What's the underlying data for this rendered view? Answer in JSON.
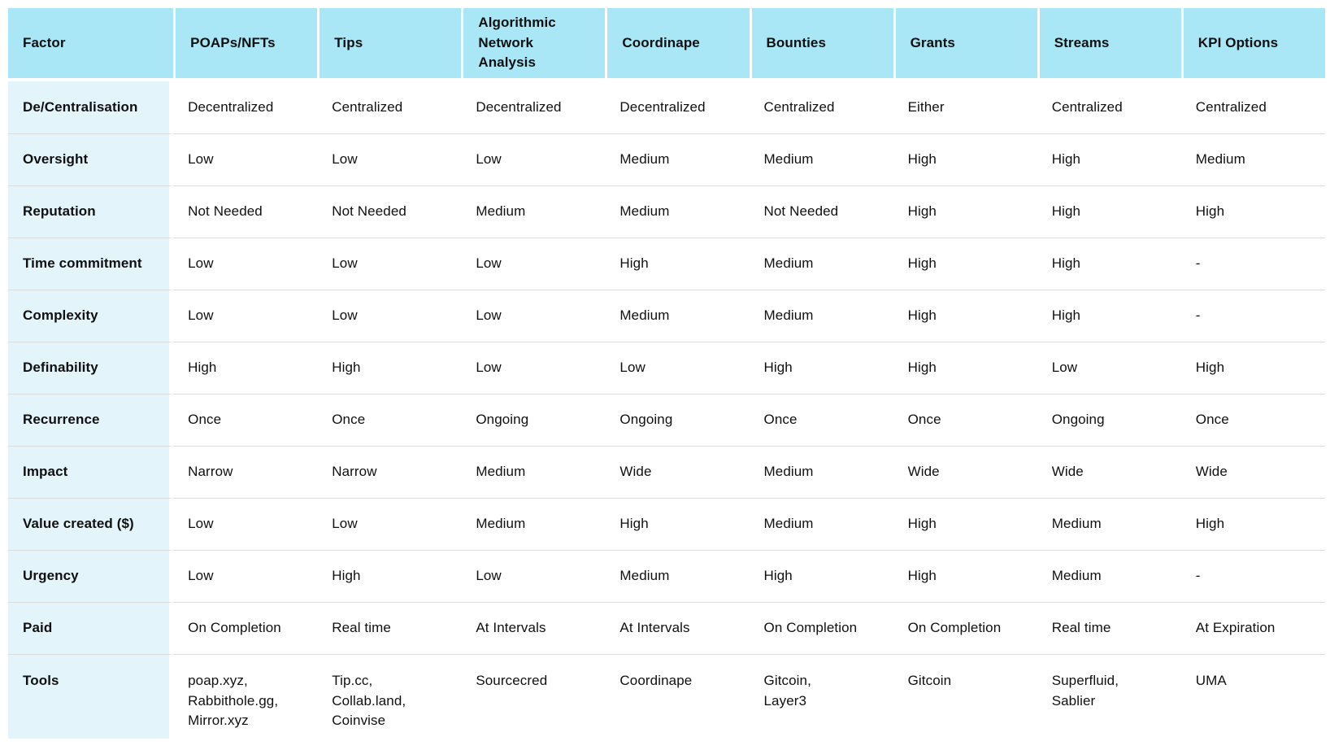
{
  "table": {
    "columns": [
      "Factor",
      "POAPs/NFTs",
      "Tips",
      "Algorithmic Network Analysis",
      "Coordinape",
      "Bounties",
      "Grants",
      "Streams",
      "KPI Options"
    ],
    "rows": [
      {
        "factor": "De/Centralisation",
        "values": [
          "Decentralized",
          "Centralized",
          "Decentralized",
          "Decentralized",
          "Centralized",
          "Either",
          "Centralized",
          "Centralized"
        ]
      },
      {
        "factor": "Oversight",
        "values": [
          "Low",
          "Low",
          "Low",
          "Medium",
          "Medium",
          "High",
          "High",
          "Medium"
        ]
      },
      {
        "factor": "Reputation",
        "values": [
          "Not Needed",
          "Not Needed",
          "Medium",
          "Medium",
          "Not Needed",
          "High",
          "High",
          "High"
        ]
      },
      {
        "factor": "Time commitment",
        "values": [
          "Low",
          "Low",
          "Low",
          "High",
          "Medium",
          "High",
          "High",
          "-"
        ]
      },
      {
        "factor": "Complexity",
        "values": [
          "Low",
          "Low",
          "Low",
          "Medium",
          "Medium",
          "High",
          "High",
          "-"
        ]
      },
      {
        "factor": "Definability",
        "values": [
          "High",
          "High",
          "Low",
          "Low",
          "High",
          "High",
          "Low",
          "High"
        ]
      },
      {
        "factor": "Recurrence",
        "values": [
          "Once",
          "Once",
          "Ongoing",
          "Ongoing",
          "Once",
          "Once",
          "Ongoing",
          "Once"
        ]
      },
      {
        "factor": "Impact",
        "values": [
          "Narrow",
          "Narrow",
          "Medium",
          "Wide",
          "Medium",
          "Wide",
          "Wide",
          "Wide"
        ]
      },
      {
        "factor": "Value created ($)",
        "values": [
          "Low",
          "Low",
          "Medium",
          "High",
          "Medium",
          "High",
          "Medium",
          "High"
        ]
      },
      {
        "factor": "Urgency",
        "values": [
          "Low",
          "High",
          "Low",
          "Medium",
          "High",
          "High",
          "Medium",
          "-"
        ]
      },
      {
        "factor": "Paid",
        "values": [
          "On Completion",
          "Real time",
          "At Intervals",
          "At Intervals",
          "On Completion",
          "On Completion",
          "Real time",
          "At Expiration"
        ]
      },
      {
        "factor": "Tools",
        "values": [
          "poap.xyz,\nRabbithole.gg,\nMirror.xyz",
          "Tip.cc,\nCollab.land,\nCoinvise",
          "Sourcecred",
          "Coordinape",
          "Gitcoin,\nLayer3",
          "Gitcoin",
          "Superfluid,\nSablier",
          "UMA"
        ]
      }
    ]
  },
  "colors": {
    "header_bg": "#a9e7f7",
    "factor_col_bg": "#e4f4fb",
    "row_divider": "#dcdcdc",
    "text": "#101010",
    "page_bg": "#ffffff"
  }
}
